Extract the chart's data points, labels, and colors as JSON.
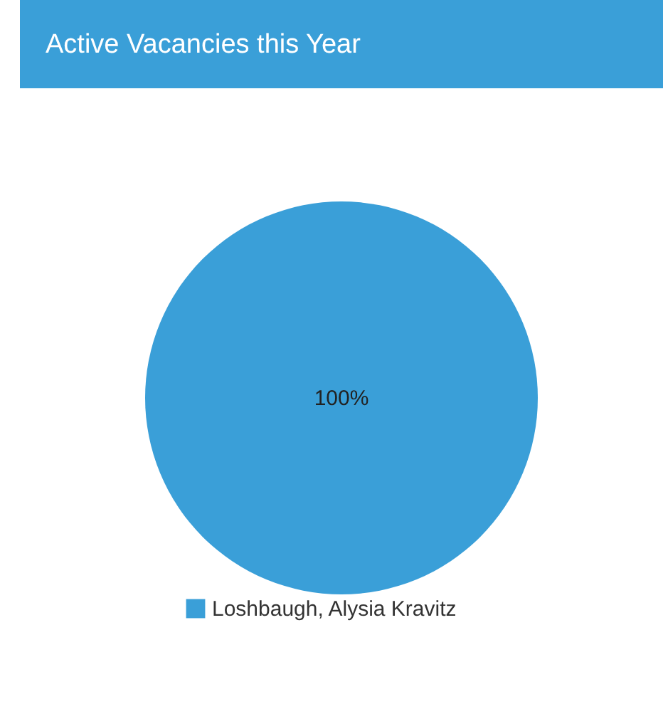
{
  "chart_data": {
    "type": "pie",
    "title": "Active Vacancies this Year",
    "categories": [
      "Loshbaugh, Alysia Kravitz"
    ],
    "values": [
      100
    ],
    "colors": [
      "#3a9fd8"
    ],
    "value_labels": [
      "100%"
    ],
    "legend": "bottom"
  }
}
